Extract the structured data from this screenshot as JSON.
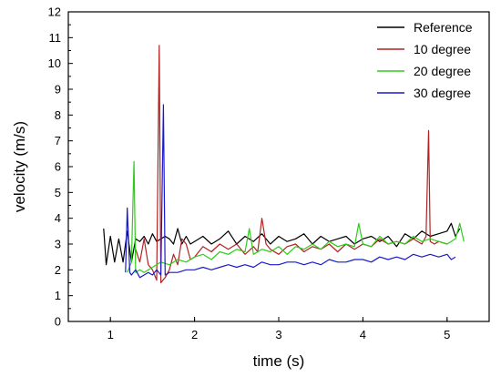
{
  "chart_data": {
    "type": "line",
    "title": "",
    "xlabel": "time (s)",
    "ylabel": "velocity (m/s)",
    "xlim": [
      0.5,
      5.5
    ],
    "ylim": [
      0,
      12
    ],
    "xticks": [
      1,
      2,
      3,
      4,
      5
    ],
    "yticks": [
      0,
      1,
      2,
      3,
      4,
      5,
      6,
      7,
      8,
      9,
      10,
      11,
      12
    ],
    "grid": false,
    "legend_position": "top-right",
    "series": [
      {
        "name": "Reference",
        "color": "#000000",
        "x": [
          0.92,
          0.95,
          1.0,
          1.05,
          1.1,
          1.15,
          1.2,
          1.25,
          1.3,
          1.35,
          1.4,
          1.45,
          1.5,
          1.55,
          1.6,
          1.65,
          1.7,
          1.75,
          1.8,
          1.85,
          1.9,
          1.95,
          2.0,
          2.1,
          2.2,
          2.3,
          2.4,
          2.5,
          2.6,
          2.7,
          2.8,
          2.9,
          3.0,
          3.1,
          3.2,
          3.3,
          3.4,
          3.5,
          3.6,
          3.7,
          3.8,
          3.9,
          4.0,
          4.1,
          4.2,
          4.3,
          4.4,
          4.5,
          4.6,
          4.7,
          4.8,
          4.9,
          5.0,
          5.05,
          5.1,
          5.15
        ],
        "y": [
          3.6,
          2.2,
          3.3,
          2.3,
          3.2,
          2.3,
          3.5,
          2.3,
          3.2,
          3.1,
          3.3,
          3.0,
          3.4,
          3.1,
          3.2,
          3.3,
          3.2,
          3.0,
          3.6,
          3.0,
          3.3,
          3.0,
          3.1,
          3.3,
          3.0,
          3.2,
          3.5,
          3.0,
          3.3,
          3.1,
          3.4,
          3.0,
          3.3,
          3.1,
          3.2,
          3.4,
          3.0,
          3.3,
          3.1,
          3.2,
          3.3,
          3.0,
          3.2,
          3.3,
          3.1,
          3.3,
          2.9,
          3.4,
          3.2,
          3.5,
          3.3,
          3.4,
          3.5,
          3.8,
          3.3,
          3.6
        ]
      },
      {
        "name": "10 degree",
        "color": "#b22222",
        "x": [
          1.3,
          1.35,
          1.4,
          1.45,
          1.5,
          1.55,
          1.58,
          1.6,
          1.65,
          1.7,
          1.75,
          1.8,
          1.85,
          1.9,
          1.95,
          2.0,
          2.1,
          2.2,
          2.3,
          2.4,
          2.5,
          2.6,
          2.7,
          2.75,
          2.8,
          2.85,
          2.9,
          3.0,
          3.1,
          3.2,
          3.3,
          3.4,
          3.5,
          3.6,
          3.7,
          3.8,
          3.9,
          4.0,
          4.1,
          4.2,
          4.3,
          4.4,
          4.5,
          4.6,
          4.7,
          4.75,
          4.78,
          4.8,
          4.85,
          4.9,
          5.0
        ],
        "y": [
          2.8,
          2.3,
          3.2,
          2.2,
          2.0,
          1.6,
          10.7,
          1.5,
          1.7,
          2.0,
          2.6,
          2.2,
          3.2,
          3.0,
          2.4,
          2.5,
          2.9,
          2.7,
          3.0,
          2.8,
          3.0,
          2.6,
          2.9,
          2.7,
          4.0,
          3.0,
          2.8,
          2.6,
          2.9,
          3.0,
          2.7,
          2.9,
          2.8,
          3.0,
          2.7,
          3.0,
          2.8,
          3.0,
          2.9,
          3.2,
          3.0,
          3.1,
          3.0,
          3.2,
          3.0,
          3.3,
          7.4,
          3.1,
          3.0,
          3.1,
          3.0
        ]
      },
      {
        "name": "20 degree",
        "color": "#2ecc1a",
        "x": [
          1.2,
          1.25,
          1.28,
          1.3,
          1.35,
          1.4,
          1.5,
          1.6,
          1.7,
          1.8,
          1.9,
          2.0,
          2.1,
          2.2,
          2.3,
          2.4,
          2.5,
          2.6,
          2.65,
          2.7,
          2.8,
          2.9,
          3.0,
          3.1,
          3.2,
          3.3,
          3.4,
          3.5,
          3.6,
          3.7,
          3.8,
          3.9,
          3.95,
          4.0,
          4.1,
          4.2,
          4.3,
          4.4,
          4.5,
          4.6,
          4.7,
          4.8,
          4.9,
          5.0,
          5.1,
          5.15,
          5.2
        ],
        "y": [
          1.9,
          2.3,
          6.2,
          1.9,
          2.0,
          1.9,
          2.1,
          2.3,
          2.2,
          2.4,
          2.3,
          2.5,
          2.6,
          2.4,
          2.7,
          2.6,
          2.8,
          2.7,
          3.6,
          2.6,
          2.8,
          2.7,
          2.9,
          2.6,
          2.9,
          2.8,
          3.0,
          2.8,
          3.1,
          2.9,
          3.0,
          2.9,
          3.8,
          3.0,
          2.9,
          3.3,
          3.0,
          3.1,
          3.0,
          3.3,
          3.1,
          3.2,
          3.1,
          3.0,
          3.2,
          3.8,
          3.1
        ]
      },
      {
        "name": "30 degree",
        "color": "#1a1acc",
        "x": [
          1.18,
          1.2,
          1.23,
          1.25,
          1.3,
          1.35,
          1.4,
          1.45,
          1.5,
          1.55,
          1.6,
          1.63,
          1.65,
          1.7,
          1.8,
          1.9,
          2.0,
          2.1,
          2.2,
          2.3,
          2.4,
          2.5,
          2.6,
          2.7,
          2.8,
          2.9,
          3.0,
          3.1,
          3.2,
          3.3,
          3.4,
          3.5,
          3.6,
          3.7,
          3.8,
          3.9,
          4.0,
          4.1,
          4.2,
          4.3,
          4.4,
          4.5,
          4.6,
          4.7,
          4.8,
          4.9,
          5.0,
          5.05,
          5.1
        ],
        "y": [
          1.9,
          4.4,
          1.9,
          1.8,
          2.0,
          1.7,
          1.8,
          1.9,
          1.8,
          2.0,
          1.8,
          8.4,
          1.8,
          1.9,
          1.9,
          2.0,
          2.0,
          2.1,
          2.0,
          2.1,
          2.2,
          2.1,
          2.2,
          2.1,
          2.3,
          2.2,
          2.2,
          2.3,
          2.3,
          2.2,
          2.3,
          2.2,
          2.4,
          2.3,
          2.3,
          2.4,
          2.4,
          2.3,
          2.5,
          2.4,
          2.5,
          2.4,
          2.6,
          2.5,
          2.6,
          2.5,
          2.6,
          2.4,
          2.5
        ]
      }
    ]
  }
}
